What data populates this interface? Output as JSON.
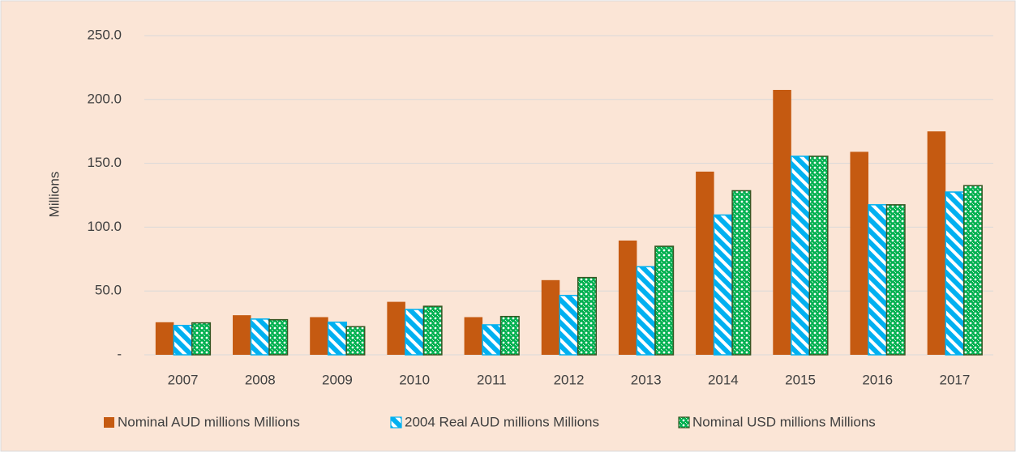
{
  "chart_data": {
    "type": "bar",
    "y_label": "Millions",
    "categories": [
      "2007",
      "2008",
      "2009",
      "2010",
      "2011",
      "2012",
      "2013",
      "2014",
      "2015",
      "2016",
      "2017"
    ],
    "series": [
      {
        "name": "Nominal AUD millions Millions",
        "color": "#c55a11",
        "pattern": "solid",
        "values": [
          25.5,
          31,
          29.5,
          41.5,
          29.5,
          58.5,
          89.5,
          143.5,
          207.5,
          159,
          175
        ]
      },
      {
        "name": "2004 Real AUD millions Millions",
        "color": "#00b0f0",
        "pattern": "stripes",
        "values": [
          23,
          28,
          25.5,
          35.5,
          23.5,
          46.5,
          69,
          109.5,
          155.5,
          117.5,
          127.5
        ]
      },
      {
        "name": "Nominal USD millions Millions",
        "color": "#00b050",
        "pattern": "lattice",
        "values": [
          25,
          27.5,
          22,
          38,
          30,
          60.5,
          85,
          128.5,
          155.5,
          117.5,
          132.5
        ]
      }
    ],
    "ylim": [
      0,
      250
    ],
    "yticks": [
      {
        "value": 0,
        "label": "-"
      },
      {
        "value": 50,
        "label": "50.0"
      },
      {
        "value": 100,
        "label": "100.0"
      },
      {
        "value": 150,
        "label": "150.0"
      },
      {
        "value": 200,
        "label": "200.0"
      },
      {
        "value": 250,
        "label": "250.0"
      }
    ],
    "grid": true,
    "legend": "bottom"
  }
}
